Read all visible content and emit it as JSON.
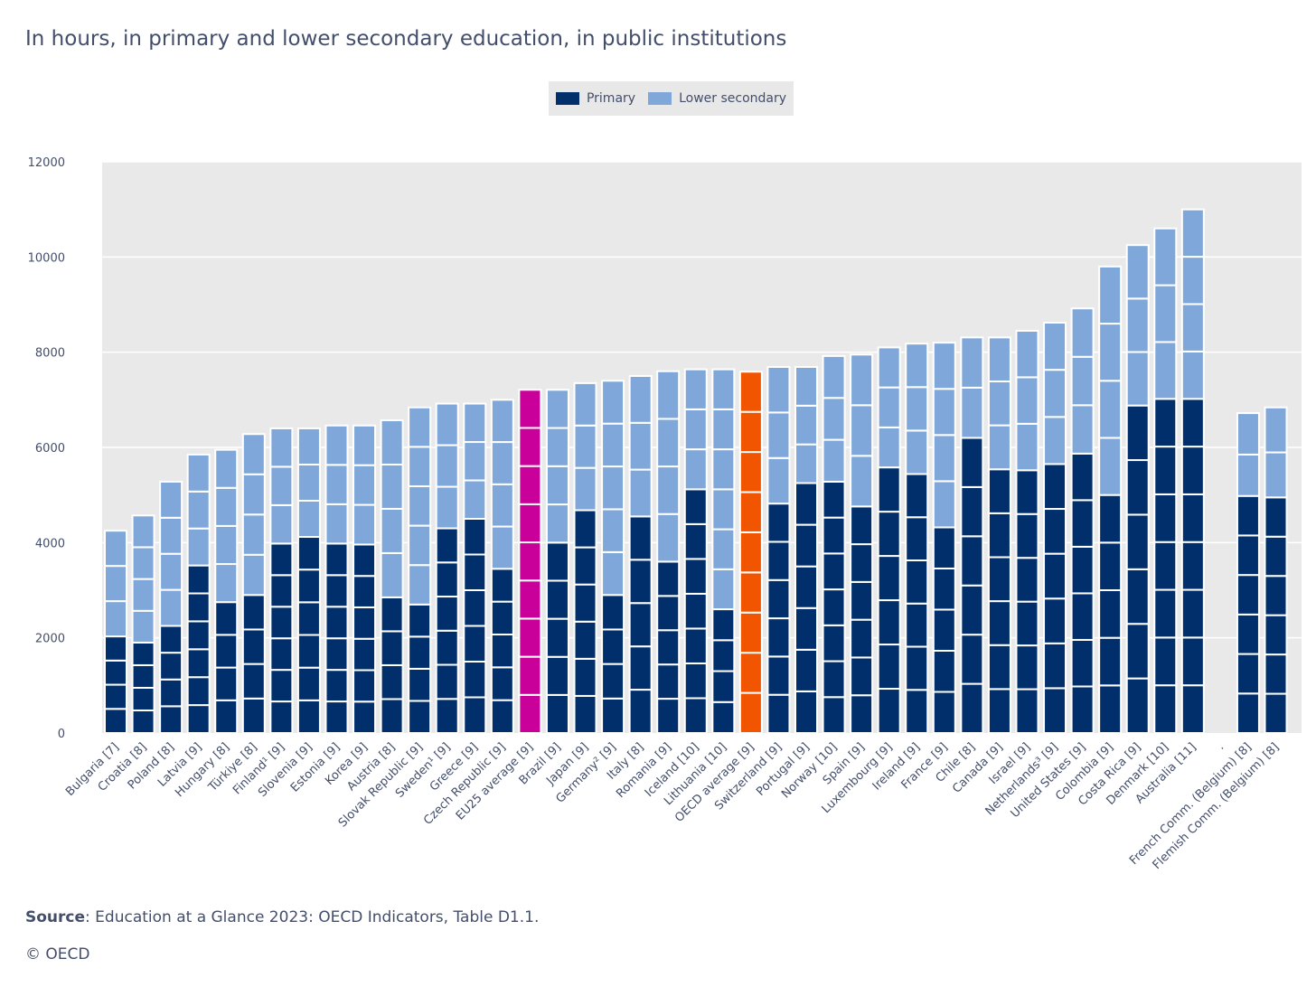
{
  "title": "In hours, in primary and lower secondary education, in public institutions",
  "legend": {
    "primary": "Primary",
    "lower_secondary": "Lower secondary"
  },
  "source": {
    "label": "Source",
    "text": ": Education at a Glance 2023: OECD Indicators, Table D1.1."
  },
  "copyright": "© OECD",
  "colors": {
    "primary": "#002f6c",
    "lower_secondary": "#7fa7d9",
    "eu_average": "#c9009a",
    "oecd_average": "#f25500",
    "plot_bg": "#e9e9e9"
  },
  "chart_data": {
    "type": "bar",
    "stacked": true,
    "title": "In hours, in primary and lower secondary education, in public institutions",
    "ylim": [
      0,
      12000
    ],
    "yticks": [
      0,
      2000,
      4000,
      6000,
      8000,
      10000,
      12000
    ],
    "grid": true,
    "legend_position": "top-center",
    "series": [
      "Primary",
      "Lower secondary"
    ],
    "bars": [
      {
        "label": "Bulgaria [7]",
        "primary": 2030,
        "primary_years": 4,
        "lower_secondary": 2220,
        "lower_secondary_years": 3
      },
      {
        "label": "Croatia [8]",
        "primary": 1900,
        "primary_years": 4,
        "lower_secondary": 2670,
        "lower_secondary_years": 4
      },
      {
        "label": "Poland [8]",
        "primary": 2250,
        "primary_years": 4,
        "lower_secondary": 3030,
        "lower_secondary_years": 4
      },
      {
        "label": "Latvia [9]",
        "primary": 3520,
        "primary_years": 6,
        "lower_secondary": 2330,
        "lower_secondary_years": 3
      },
      {
        "label": "Hungary [8]",
        "primary": 2750,
        "primary_years": 4,
        "lower_secondary": 3200,
        "lower_secondary_years": 4
      },
      {
        "label": "Türkiye [8]",
        "primary": 2900,
        "primary_years": 4,
        "lower_secondary": 3380,
        "lower_secondary_years": 4
      },
      {
        "label": "Finland¹ [9]",
        "primary": 3980,
        "primary_years": 6,
        "lower_secondary": 2420,
        "lower_secondary_years": 3
      },
      {
        "label": "Slovenia [9]",
        "primary": 4120,
        "primary_years": 6,
        "lower_secondary": 2280,
        "lower_secondary_years": 3
      },
      {
        "label": "Estonia [9]",
        "primary": 3980,
        "primary_years": 6,
        "lower_secondary": 2480,
        "lower_secondary_years": 3
      },
      {
        "label": "Korea [9]",
        "primary": 3960,
        "primary_years": 6,
        "lower_secondary": 2500,
        "lower_secondary_years": 3
      },
      {
        "label": "Austria [8]",
        "primary": 2850,
        "primary_years": 4,
        "lower_secondary": 3720,
        "lower_secondary_years": 4
      },
      {
        "label": "Slovak Republic [9]",
        "primary": 2700,
        "primary_years": 4,
        "lower_secondary": 4140,
        "lower_secondary_years": 5
      },
      {
        "label": "Sweden¹ [9]",
        "primary": 4300,
        "primary_years": 6,
        "lower_secondary": 2620,
        "lower_secondary_years": 3
      },
      {
        "label": "Greece [9]",
        "primary": 4500,
        "primary_years": 6,
        "lower_secondary": 2420,
        "lower_secondary_years": 3
      },
      {
        "label": "Czech Republic [9]",
        "primary": 3450,
        "primary_years": 5,
        "lower_secondary": 3550,
        "lower_secondary_years": 4
      },
      {
        "label": "EU25 average [9]",
        "total": 7210,
        "years": 9,
        "highlight": "eu_average"
      },
      {
        "label": "Brazil [9]",
        "primary": 4000,
        "primary_years": 5,
        "lower_secondary": 3210,
        "lower_secondary_years": 4
      },
      {
        "label": "Japan [9]",
        "primary": 4680,
        "primary_years": 6,
        "lower_secondary": 2670,
        "lower_secondary_years": 3
      },
      {
        "label": "Germany² [9]",
        "primary": 2900,
        "primary_years": 4,
        "lower_secondary": 4500,
        "lower_secondary_years": 5
      },
      {
        "label": "Italy [8]",
        "primary": 4550,
        "primary_years": 5,
        "lower_secondary": 2950,
        "lower_secondary_years": 3
      },
      {
        "label": "Romania [9]",
        "primary": 3600,
        "primary_years": 5,
        "lower_secondary": 4000,
        "lower_secondary_years": 4
      },
      {
        "label": "Iceland [10]",
        "primary": 5120,
        "primary_years": 7,
        "lower_secondary": 2520,
        "lower_secondary_years": 3
      },
      {
        "label": "Lithuania [10]",
        "primary": 2600,
        "primary_years": 4,
        "lower_secondary": 5040,
        "lower_secondary_years": 6
      },
      {
        "label": "OECD average [9]",
        "total": 7590,
        "years": 9,
        "highlight": "oecd_average"
      },
      {
        "label": "Switzerland [9]",
        "primary": 4820,
        "primary_years": 6,
        "lower_secondary": 2870,
        "lower_secondary_years": 3
      },
      {
        "label": "Portugal [9]",
        "primary": 5250,
        "primary_years": 6,
        "lower_secondary": 2440,
        "lower_secondary_years": 3
      },
      {
        "label": "Norway [10]",
        "primary": 5280,
        "primary_years": 7,
        "lower_secondary": 2640,
        "lower_secondary_years": 3
      },
      {
        "label": "Spain [9]",
        "primary": 4760,
        "primary_years": 6,
        "lower_secondary": 3190,
        "lower_secondary_years": 3
      },
      {
        "label": "Luxembourg [9]",
        "primary": 5580,
        "primary_years": 6,
        "lower_secondary": 2520,
        "lower_secondary_years": 3
      },
      {
        "label": "Ireland [9]",
        "primary": 5440,
        "primary_years": 6,
        "lower_secondary": 2740,
        "lower_secondary_years": 3
      },
      {
        "label": "France [9]",
        "primary": 4320,
        "primary_years": 5,
        "lower_secondary": 3880,
        "lower_secondary_years": 4
      },
      {
        "label": "Chile [8]",
        "primary": 6200,
        "primary_years": 6,
        "lower_secondary": 2110,
        "lower_secondary_years": 2
      },
      {
        "label": "Canada [9]",
        "primary": 5540,
        "primary_years": 6,
        "lower_secondary": 2770,
        "lower_secondary_years": 3
      },
      {
        "label": "Israel [9]",
        "primary": 5520,
        "primary_years": 6,
        "lower_secondary": 2930,
        "lower_secondary_years": 3
      },
      {
        "label": "Netherlands³ [9]",
        "primary": 5650,
        "primary_years": 6,
        "lower_secondary": 2970,
        "lower_secondary_years": 3
      },
      {
        "label": "United States [9]",
        "primary": 5870,
        "primary_years": 6,
        "lower_secondary": 3050,
        "lower_secondary_years": 3
      },
      {
        "label": "Colombia [9]",
        "primary": 5000,
        "primary_years": 5,
        "lower_secondary": 4800,
        "lower_secondary_years": 4
      },
      {
        "label": "Costa Rica [9]",
        "primary": 6880,
        "primary_years": 6,
        "lower_secondary": 3370,
        "lower_secondary_years": 3
      },
      {
        "label": "Denmark [10]",
        "primary": 7020,
        "primary_years": 7,
        "lower_secondary": 3580,
        "lower_secondary_years": 3
      },
      {
        "label": "Australia [11]",
        "primary": 7020,
        "primary_years": 7,
        "lower_secondary": 3980,
        "lower_secondary_years": 4
      },
      {
        "label": ".",
        "spacer": true
      },
      {
        "label": "French Comm. (Belgium) [8]",
        "primary": 4980,
        "primary_years": 6,
        "lower_secondary": 1740,
        "lower_secondary_years": 2
      },
      {
        "label": "Flemish Comm. (Belgium) [8]",
        "primary": 4950,
        "primary_years": 6,
        "lower_secondary": 1890,
        "lower_secondary_years": 2
      }
    ]
  }
}
